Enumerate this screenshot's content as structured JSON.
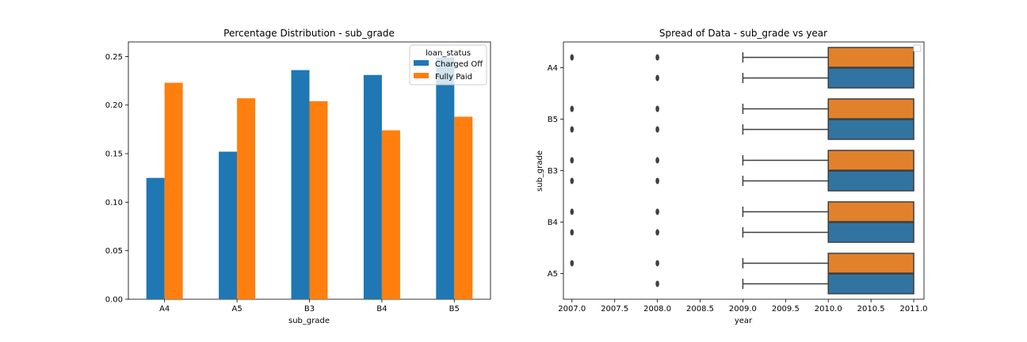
{
  "chart_data": [
    {
      "type": "bar",
      "title": "Percentage Distribution - sub_grade",
      "xlabel": "sub_grade",
      "ylabel": "",
      "categories": [
        "A4",
        "A5",
        "B3",
        "B4",
        "B5"
      ],
      "ylim": [
        0,
        0.265
      ],
      "yticks": [
        "0.00",
        "0.05",
        "0.10",
        "0.15",
        "0.20",
        "0.25"
      ],
      "legend": {
        "title": "loan_status",
        "placement": "top-right"
      },
      "series": [
        {
          "name": "Charged Off",
          "color": "#1f77b4",
          "values": [
            0.125,
            0.152,
            0.236,
            0.231,
            0.249
          ]
        },
        {
          "name": "Fully Paid",
          "color": "#ff7f0e",
          "values": [
            0.223,
            0.207,
            0.204,
            0.174,
            0.188
          ]
        }
      ]
    },
    {
      "type": "box",
      "orientation": "horizontal",
      "title": "Spread of Data - sub_grade vs year",
      "xlabel": "year",
      "ylabel": "sub_grade",
      "xlim": [
        2006.9,
        2011.12
      ],
      "xticks": [
        "2007.0",
        "2007.5",
        "2008.0",
        "2008.5",
        "2009.0",
        "2009.5",
        "2010.0",
        "2010.5",
        "2011.0"
      ],
      "categories": [
        "A4",
        "B5",
        "B3",
        "B4",
        "A5"
      ],
      "legend": {
        "placement": "top-right",
        "entries": []
      },
      "series": [
        {
          "color": "#e1812c",
          "boxes": [
            {
              "whisker_low": 2009.0,
              "q1": 2010.0,
              "median": 2010.0,
              "q3": 2011.0,
              "whisker_high": 2011.0,
              "outliers": [
                2007.0,
                2008.0
              ]
            },
            {
              "whisker_low": 2009.0,
              "q1": 2010.0,
              "median": 2010.0,
              "q3": 2011.0,
              "whisker_high": 2011.0,
              "outliers": [
                2007.0,
                2008.0
              ]
            },
            {
              "whisker_low": 2009.0,
              "q1": 2010.0,
              "median": 2010.0,
              "q3": 2011.0,
              "whisker_high": 2011.0,
              "outliers": [
                2007.0,
                2008.0
              ]
            },
            {
              "whisker_low": 2009.0,
              "q1": 2010.0,
              "median": 2010.0,
              "q3": 2011.0,
              "whisker_high": 2011.0,
              "outliers": [
                2007.0,
                2008.0
              ]
            },
            {
              "whisker_low": 2009.0,
              "q1": 2010.0,
              "median": 2010.0,
              "q3": 2011.0,
              "whisker_high": 2011.0,
              "outliers": [
                2007.0,
                2008.0
              ]
            }
          ]
        },
        {
          "color": "#3274a1",
          "boxes": [
            {
              "whisker_low": 2009.0,
              "q1": 2010.0,
              "median": 2010.0,
              "q3": 2011.0,
              "whisker_high": 2011.0,
              "outliers": [
                2008.0
              ]
            },
            {
              "whisker_low": 2009.0,
              "q1": 2010.0,
              "median": 2010.0,
              "q3": 2011.0,
              "whisker_high": 2011.0,
              "outliers": [
                2007.0,
                2008.0
              ]
            },
            {
              "whisker_low": 2009.0,
              "q1": 2010.0,
              "median": 2010.0,
              "q3": 2011.0,
              "whisker_high": 2011.0,
              "outliers": [
                2007.0,
                2008.0
              ]
            },
            {
              "whisker_low": 2009.0,
              "q1": 2010.0,
              "median": 2010.0,
              "q3": 2011.0,
              "whisker_high": 2011.0,
              "outliers": [
                2007.0,
                2008.0
              ]
            },
            {
              "whisker_low": 2009.0,
              "q1": 2010.0,
              "median": 2010.0,
              "q3": 2011.0,
              "whisker_high": 2011.0,
              "outliers": [
                2008.0
              ]
            }
          ]
        }
      ]
    }
  ]
}
